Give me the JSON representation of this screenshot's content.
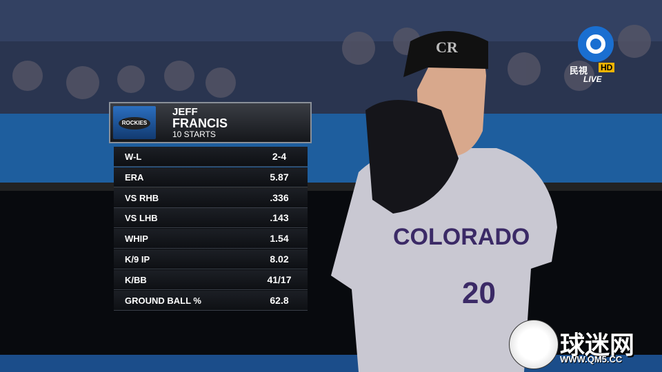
{
  "header": {
    "first_name": "JEFF",
    "last_name": "FRANCIS",
    "subtitle": "10 STARTS",
    "team_logo": "ROCKIES"
  },
  "table": {
    "rows": [
      [
        "W-L",
        "2-4"
      ],
      [
        "ERA",
        "5.87"
      ],
      [
        "VS RHB",
        ".336"
      ],
      [
        "VS LHB",
        ".143"
      ],
      [
        "WHIP",
        "1.54"
      ],
      [
        "K/9 IP",
        "8.02"
      ],
      [
        "K/BB",
        "41/17"
      ],
      [
        "GROUND BALL %",
        "62.8"
      ]
    ]
  },
  "broadcaster": {
    "name": "民視",
    "hd": "HD",
    "live": "LIVE"
  },
  "watermark": {
    "name": "球迷网",
    "url": "WWW.QM5.CC"
  },
  "photo": {
    "jersey_text": "COLORADO",
    "jersey_number": "20"
  }
}
